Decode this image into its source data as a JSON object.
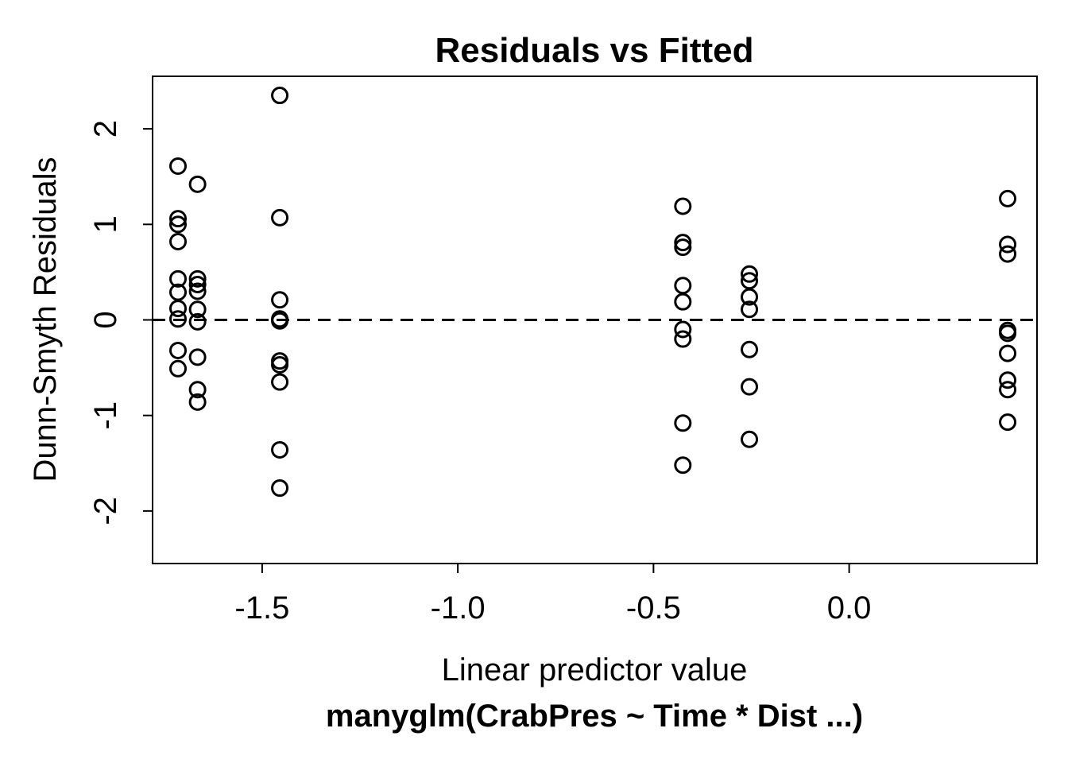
{
  "chart_data": {
    "type": "scatter",
    "title": "Residuals vs Fitted",
    "xlabel": "Linear predictor value",
    "ylabel": "Dunn-Smyth Residuals",
    "subtitle": "manyglm(CrabPres ~ Time * Dist ...)",
    "xlim": [
      -1.78,
      0.48
    ],
    "ylim": [
      -2.55,
      2.55
    ],
    "x_ticks": [
      -1.5,
      -1.0,
      -0.5,
      0.0
    ],
    "x_tick_labels": [
      "-1.5",
      "-1.0",
      "-0.5",
      "0.0"
    ],
    "y_ticks": [
      -2,
      -1,
      0,
      1,
      2
    ],
    "y_tick_labels": [
      "-2",
      "-1",
      "0",
      "1",
      "2"
    ],
    "reference_line": {
      "y": 0,
      "style": "dashed"
    },
    "marker": "open-circle",
    "grid": false,
    "legend": "none",
    "points": [
      {
        "x": -1.715,
        "y": 1.61
      },
      {
        "x": -1.715,
        "y": 1.06
      },
      {
        "x": -1.715,
        "y": 1.0
      },
      {
        "x": -1.715,
        "y": 0.82
      },
      {
        "x": -1.715,
        "y": 0.43
      },
      {
        "x": -1.715,
        "y": 0.29
      },
      {
        "x": -1.715,
        "y": 0.12
      },
      {
        "x": -1.715,
        "y": 0.01
      },
      {
        "x": -1.715,
        "y": -0.32
      },
      {
        "x": -1.715,
        "y": -0.51
      },
      {
        "x": -1.665,
        "y": 1.42
      },
      {
        "x": -1.665,
        "y": 0.43
      },
      {
        "x": -1.665,
        "y": 0.37
      },
      {
        "x": -1.665,
        "y": 0.3
      },
      {
        "x": -1.665,
        "y": 0.11
      },
      {
        "x": -1.665,
        "y": -0.02
      },
      {
        "x": -1.665,
        "y": -0.39
      },
      {
        "x": -1.665,
        "y": -0.73
      },
      {
        "x": -1.665,
        "y": -0.86
      },
      {
        "x": -1.455,
        "y": 2.35
      },
      {
        "x": -1.455,
        "y": 1.07
      },
      {
        "x": -1.455,
        "y": 0.21
      },
      {
        "x": -1.455,
        "y": 0.01
      },
      {
        "x": -1.455,
        "y": -0.01
      },
      {
        "x": -1.455,
        "y": -0.43
      },
      {
        "x": -1.455,
        "y": -0.47
      },
      {
        "x": -1.455,
        "y": -0.65
      },
      {
        "x": -1.455,
        "y": -1.36
      },
      {
        "x": -1.455,
        "y": -1.76
      },
      {
        "x": -0.425,
        "y": 1.19
      },
      {
        "x": -0.425,
        "y": 0.81
      },
      {
        "x": -0.425,
        "y": 0.76
      },
      {
        "x": -0.425,
        "y": 0.36
      },
      {
        "x": -0.425,
        "y": 0.19
      },
      {
        "x": -0.425,
        "y": -0.1
      },
      {
        "x": -0.425,
        "y": -0.2
      },
      {
        "x": -0.425,
        "y": -1.08
      },
      {
        "x": -0.425,
        "y": -1.52
      },
      {
        "x": -0.255,
        "y": 0.48
      },
      {
        "x": -0.255,
        "y": 0.41
      },
      {
        "x": -0.255,
        "y": 0.24
      },
      {
        "x": -0.255,
        "y": 0.11
      },
      {
        "x": -0.255,
        "y": -0.31
      },
      {
        "x": -0.255,
        "y": -0.7
      },
      {
        "x": -0.255,
        "y": -1.25
      },
      {
        "x": 0.405,
        "y": 1.27
      },
      {
        "x": 0.405,
        "y": 0.79
      },
      {
        "x": 0.405,
        "y": 0.69
      },
      {
        "x": 0.405,
        "y": -0.11
      },
      {
        "x": 0.405,
        "y": -0.14
      },
      {
        "x": 0.405,
        "y": -0.35
      },
      {
        "x": 0.405,
        "y": -0.63
      },
      {
        "x": 0.405,
        "y": -0.73
      },
      {
        "x": 0.405,
        "y": -1.07
      }
    ]
  }
}
